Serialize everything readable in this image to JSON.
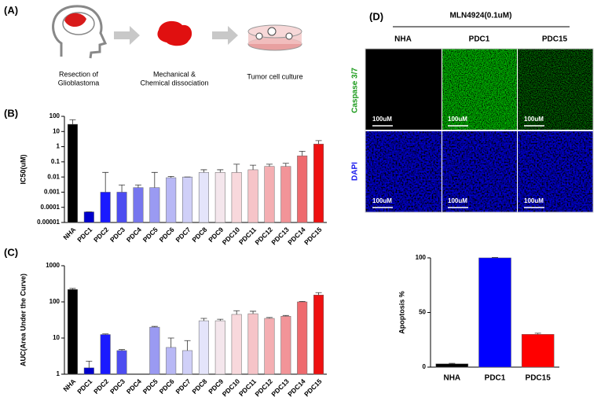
{
  "panels": [
    "(A)",
    "(B)",
    "(C)",
    "(D)"
  ],
  "workflow": [
    [
      "Resection of",
      "Glioblastoma"
    ],
    [
      "Mechanical &",
      "Chemical dissociation"
    ],
    [
      "Tumor cell culture"
    ]
  ],
  "imaging": {
    "title": "MLN4924(0.1uM)",
    "columns": [
      "NHA",
      "PDC1",
      "PDC15"
    ],
    "rows": [
      "Caspase 3/7",
      "DAPI"
    ],
    "scale_bar": "100uM"
  },
  "chart_data": [
    {
      "type": "bar",
      "ylabel": "IC50(uM)",
      "log_scale": true,
      "categories": [
        "NHA",
        "PDC1",
        "PDC2",
        "PDC3",
        "PDC4",
        "PDC5",
        "PDC6",
        "PDC7",
        "PDC8",
        "PDC9",
        "PDC10",
        "PDC11",
        "PDC12",
        "PDC13",
        "PDC14",
        "PDC15"
      ],
      "values": [
        30,
        5e-05,
        0.001,
        0.001,
        0.002,
        0.002,
        0.009,
        0.01,
        0.02,
        0.02,
        0.02,
        0.03,
        0.05,
        0.05,
        0.25,
        1.5
      ],
      "errors": [
        30,
        0,
        0.019,
        0.002,
        0.001,
        0.018,
        0.002,
        0,
        0.01,
        0.01,
        0.05,
        0.03,
        0.02,
        0.03,
        0.25,
        1
      ],
      "colors": [
        "#000000",
        "#0000cc",
        "#1a1aff",
        "#4d4df0",
        "#7777ee",
        "#9a9af2",
        "#b8b8f5",
        "#d0d0f8",
        "#e4e4fa",
        "#f4e6ec",
        "#f8d8dc",
        "#f6c4c8",
        "#f4aeb2",
        "#f29498",
        "#ee6a6e",
        "#ee1111"
      ],
      "ylim": [
        1e-05,
        100
      ],
      "yticks": [
        100,
        10,
        1,
        0.1,
        0.01,
        0.001,
        0.0001,
        1e-05
      ]
    },
    {
      "type": "bar",
      "ylabel": "AUC(Area Under the Curve)",
      "log_scale": true,
      "categories": [
        "NHA",
        "PDC1",
        "PDC2",
        "PDC3",
        "PDC4",
        "PDC5",
        "PDC6",
        "PDC7",
        "PDC8",
        "PDC9",
        "PDC10",
        "PDC11",
        "PDC12",
        "PDC13",
        "PDC14",
        "PDC15"
      ],
      "values": [
        220,
        1.5,
        12.5,
        4.5,
        null,
        20,
        5.5,
        4.5,
        30,
        30,
        45,
        47,
        35,
        40,
        100,
        155
      ],
      "errors": [
        15,
        0.8,
        0.5,
        0.3,
        null,
        1,
        4.5,
        4,
        5,
        3,
        12,
        8,
        2,
        2,
        3,
        25
      ],
      "colors": [
        "#000000",
        "#0000cc",
        "#1a1aff",
        "#4d4df0",
        "#7777ee",
        "#9a9af2",
        "#b8b8f5",
        "#d0d0f8",
        "#e4e4fa",
        "#f4e6ec",
        "#f8d8dc",
        "#f6c4c8",
        "#f4aeb2",
        "#f29498",
        "#ee6a6e",
        "#ee1111"
      ],
      "ylim": [
        1,
        1000
      ],
      "yticks": [
        1000,
        100,
        10,
        1
      ]
    },
    {
      "type": "bar",
      "ylabel": "Apoptosis %",
      "log_scale": false,
      "categories": [
        "NHA",
        "PDC1",
        "PDC15"
      ],
      "values": [
        3,
        100,
        30
      ],
      "errors": [
        0.5,
        0.3,
        1
      ],
      "colors": [
        "#000000",
        "#0000ff",
        "#ff0000"
      ],
      "ylim": [
        0,
        100
      ],
      "yticks": [
        100,
        50,
        0
      ]
    }
  ]
}
